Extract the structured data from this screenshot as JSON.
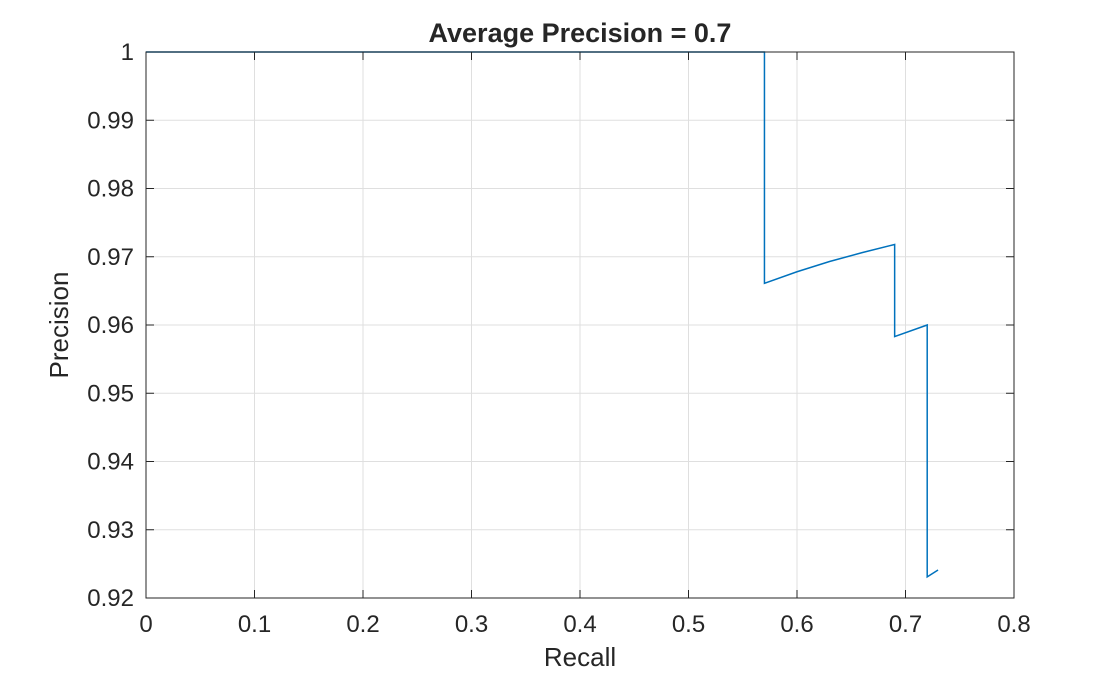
{
  "chart_data": {
    "type": "line",
    "title": "Average Precision = 0.7",
    "xlabel": "Recall",
    "ylabel": "Precision",
    "xlim": [
      0,
      0.8
    ],
    "ylim": [
      0.92,
      1
    ],
    "x_ticks": [
      0,
      0.1,
      0.2,
      0.3,
      0.4,
      0.5,
      0.6,
      0.7,
      0.8
    ],
    "x_tick_labels": [
      "0",
      "0.1",
      "0.2",
      "0.3",
      "0.4",
      "0.5",
      "0.6",
      "0.7",
      "0.8"
    ],
    "y_ticks": [
      0.92,
      0.93,
      0.94,
      0.95,
      0.96,
      0.97,
      0.98,
      0.99,
      1
    ],
    "y_tick_labels": [
      "0.92",
      "0.93",
      "0.94",
      "0.95",
      "0.96",
      "0.97",
      "0.98",
      "0.99",
      "1"
    ],
    "grid": true,
    "line_color": "#0072BD",
    "series": [
      {
        "x": [
          0,
          0.57,
          0.57,
          0.6,
          0.63,
          0.66,
          0.69,
          0.69,
          0.72,
          0.72,
          0.73
        ],
        "y": [
          1,
          1,
          0.9661,
          0.9678,
          0.9693,
          0.9706,
          0.9718,
          0.9583,
          0.96,
          0.9231,
          0.9241
        ]
      }
    ]
  }
}
